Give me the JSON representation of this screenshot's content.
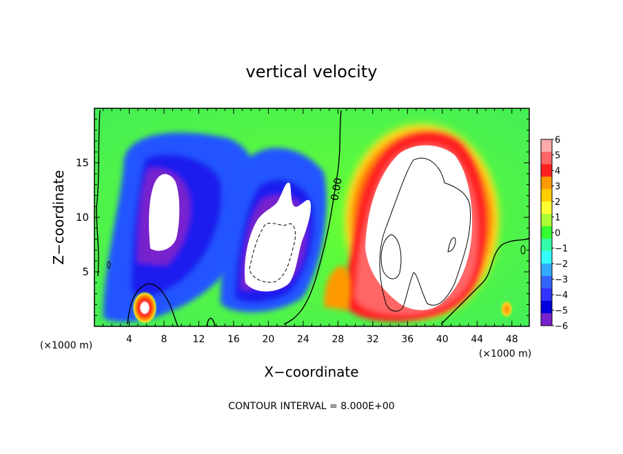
{
  "chart_data": {
    "type": "heatmap",
    "title": "vertical velocity",
    "xlabel": "X−coordinate",
    "ylabel": "Z−coordinate",
    "x_unit_left": "(×1000 m)",
    "x_unit_right": "(×1000 m)",
    "xlim": [
      0,
      50
    ],
    "ylim": [
      0,
      20
    ],
    "x_ticks": [
      4,
      8,
      12,
      16,
      20,
      24,
      28,
      32,
      36,
      40,
      44,
      48
    ],
    "y_ticks": [
      5,
      10,
      15
    ],
    "contour_label": "0.00",
    "footer": "CONTOUR INTERVAL = 8.000E+00",
    "colorbar": {
      "labels": [
        "6",
        "5",
        "4",
        "3",
        "2",
        "1",
        "0",
        "−1",
        "−2",
        "−3",
        "−4",
        "−5",
        "−6"
      ],
      "values": [
        6,
        5,
        4,
        3,
        2,
        1,
        0,
        -1,
        -2,
        -3,
        -4,
        -5,
        -6
      ],
      "colors": [
        "#ffaaaa",
        "#ff6666",
        "#ff2020",
        "#ff9900",
        "#ffcc00",
        "#ffff33",
        "#aaff33",
        "#33ff33",
        "#33ffaa",
        "#33ffff",
        "#33aaff",
        "#3366ff",
        "#3333ff",
        "#0000dd",
        "#7722cc"
      ]
    },
    "features": [
      {
        "name": "updraft-core",
        "x": 37,
        "z": 9,
        "w": 8
      },
      {
        "name": "downdraft-west",
        "x": 8,
        "z": 11,
        "w": -8
      },
      {
        "name": "downdraft-central",
        "x": 21,
        "z": 8,
        "w": -8
      },
      {
        "name": "updraft-small-sw",
        "x": 6,
        "z": 2,
        "w": 7
      }
    ]
  }
}
